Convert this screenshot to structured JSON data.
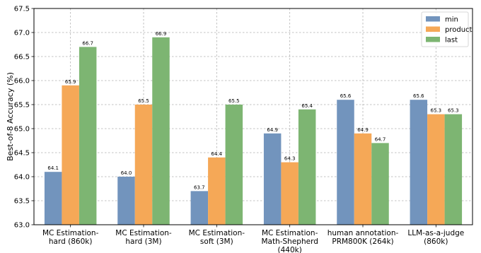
{
  "chart_data": {
    "type": "bar",
    "categories": [
      [
        "MC Estimation-",
        "hard (860k)"
      ],
      [
        "MC Estimation-",
        "hard (3M)"
      ],
      [
        "MC Estimation-",
        "soft (3M)"
      ],
      [
        "MC Estimation-",
        "Math-Shepherd",
        "(440k)"
      ],
      [
        "human annotation-",
        "PRM800K (264k)"
      ],
      [
        "LLM-as-a-judge",
        "(860k)"
      ]
    ],
    "series": [
      {
        "name": "min",
        "color": "#7294bd",
        "values": [
          64.1,
          64.0,
          63.7,
          64.9,
          65.6,
          65.6
        ]
      },
      {
        "name": "product",
        "color": "#f5a857",
        "values": [
          65.9,
          65.5,
          64.4,
          64.3,
          64.9,
          65.3
        ]
      },
      {
        "name": "last",
        "color": "#7db572",
        "values": [
          66.7,
          66.9,
          65.5,
          65.4,
          64.7,
          65.3
        ]
      }
    ],
    "data_labels": [
      [
        "64.1",
        "64.0",
        "63.7",
        "64.9",
        "65.6",
        "65.6"
      ],
      [
        "65.9",
        "65.5",
        "64.4",
        "64.3",
        "64.9",
        "65.3"
      ],
      [
        "66.7",
        "66.9",
        "65.5",
        "65.4",
        "64.7",
        "65.3"
      ]
    ],
    "ylabel": "Best-of-8 Accuracy (%)",
    "ylim": [
      63.0,
      67.5
    ],
    "yticks": [
      "63.0",
      "63.5",
      "64.0",
      "64.5",
      "65.0",
      "65.5",
      "66.0",
      "66.5",
      "67.0",
      "67.5"
    ],
    "grid": true,
    "legend_position": "top-right"
  }
}
